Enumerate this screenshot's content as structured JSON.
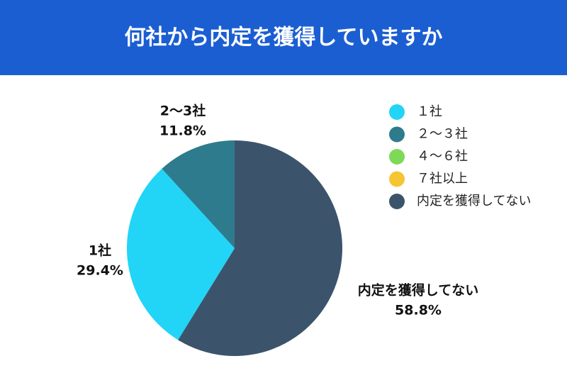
{
  "chart_data": {
    "type": "pie",
    "title": "何社から内定を獲得していますか",
    "categories": [
      "１社",
      "２～３社",
      "４～６社",
      "７社以上",
      "内定を獲得してない"
    ],
    "values": [
      29.4,
      11.8,
      0,
      0,
      58.8
    ],
    "value_labels": [
      "29.4%",
      "11.8%",
      null,
      null,
      "58.8%"
    ],
    "slice_labels": [
      "1社",
      "2～3社",
      null,
      null,
      "内定を獲得してない"
    ],
    "colors": [
      "#22d4f6",
      "#2e7b8d",
      "#7fd958",
      "#f6c532",
      "#3b546c"
    ],
    "legend": "top-right"
  }
}
